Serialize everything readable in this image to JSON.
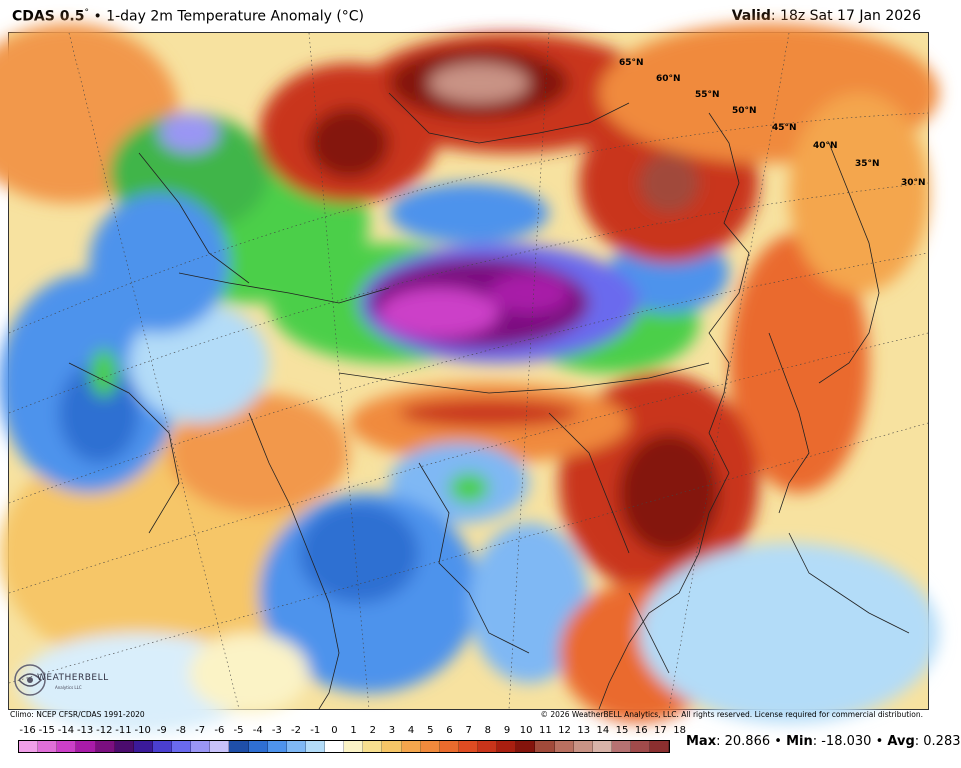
{
  "header": {
    "model": "CDAS 0.5",
    "degree_symbol": "°",
    "separator": "•",
    "product": "1-day 2m Temperature Anomaly (°C)",
    "valid_label": "Valid",
    "valid_value": ": 18z Sat 17 Jan 2026"
  },
  "map": {
    "latitude_labels": [
      "65°N",
      "60°N",
      "55°N",
      "50°N",
      "45°N",
      "40°N",
      "35°N",
      "30°N"
    ],
    "colors": {
      "deep_purple": "#5b1a8a",
      "magenta": "#c41ec0",
      "violet": "#7b4fd6",
      "blue": "#3f7ee0",
      "light_blue": "#9fd0f5",
      "pale_blue": "#d9eefb",
      "green": "#4ccf4a",
      "light_green": "#9be88a",
      "pale_yellow": "#f6ecb4",
      "orange": "#f2984b",
      "red_orange": "#e5552a",
      "dark_red": "#9e1e10",
      "brown_red": "#6a1008",
      "pinkish_white": "#e8d2d2"
    }
  },
  "footer": {
    "climo": "Climo: NCEP CFSR/CDAS 1991-2020",
    "copyright": "© 2026 WeatherBELL Analytics, LLC. All rights reserved. License required for commercial distribution."
  },
  "logo": {
    "text": "WEATHERBELL",
    "subtext": "Analytics LLC"
  },
  "legend": {
    "ticks": [
      "-16",
      "-15",
      "-14",
      "-13",
      "-12",
      "-11",
      "-10",
      "-9",
      "-8",
      "-7",
      "-6",
      "-5",
      "-4",
      "-3",
      "-2",
      "-1",
      "0",
      "1",
      "2",
      "3",
      "4",
      "5",
      "6",
      "7",
      "8",
      "9",
      "10",
      "11",
      "12",
      "13",
      "14",
      "15",
      "16",
      "17",
      "18"
    ],
    "colors": [
      "#f09fe8",
      "#e06fd8",
      "#cc3fc8",
      "#a81ba8",
      "#7b0f80",
      "#4b0c6e",
      "#3b1a9a",
      "#4a3fd0",
      "#6a6aee",
      "#9a96f4",
      "#c8c2fa",
      "#1f4fa8",
      "#2f6fd2",
      "#4e93ec",
      "#7fb8f4",
      "#b3dcf8",
      "#ffffff",
      "#fbf3c6",
      "#f7df8f",
      "#f6c667",
      "#f4a64d",
      "#f08a3c",
      "#ea6b2d",
      "#df4c22",
      "#c9341a",
      "#a91f10",
      "#84140c",
      "#a14a3a",
      "#b97060",
      "#c99385",
      "#d8b3a8",
      "#b67272",
      "#a04b4b",
      "#8b2f2f"
    ]
  },
  "stats": {
    "max_label": "Max",
    "max_value": ": 20.866",
    "min_label": "Min",
    "min_value": ": -18.030",
    "avg_label": "Avg",
    "avg_value": ": 0.283",
    "bullet": "•"
  }
}
